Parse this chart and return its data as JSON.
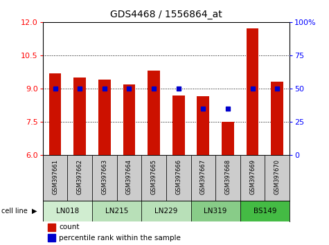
{
  "title": "GDS4468 / 1556864_at",
  "samples": [
    "GSM397661",
    "GSM397662",
    "GSM397663",
    "GSM397664",
    "GSM397665",
    "GSM397666",
    "GSM397667",
    "GSM397668",
    "GSM397669",
    "GSM397670"
  ],
  "count_values": [
    9.7,
    9.5,
    9.4,
    9.2,
    9.8,
    8.7,
    8.65,
    7.5,
    11.7,
    9.3
  ],
  "percentile_values": [
    50,
    50,
    50,
    50,
    50,
    50,
    35,
    35,
    50,
    50
  ],
  "cell_lines": [
    {
      "label": "LN018",
      "start": 0,
      "end": 1,
      "color": "#d8f0d8"
    },
    {
      "label": "LN215",
      "start": 2,
      "end": 3,
      "color": "#c0e8c0"
    },
    {
      "label": "LN229",
      "start": 4,
      "end": 5,
      "color": "#c0e8c0"
    },
    {
      "label": "LN319",
      "start": 6,
      "end": 7,
      "color": "#90d890"
    },
    {
      "label": "BS149",
      "start": 8,
      "end": 9,
      "color": "#44cc44"
    }
  ],
  "ylim_left": [
    6,
    12
  ],
  "ylim_right": [
    0,
    100
  ],
  "bar_color": "#cc1100",
  "dot_color": "#0000cc",
  "bar_width": 0.5,
  "yticks_left": [
    6,
    7.5,
    9,
    10.5,
    12
  ],
  "yticks_right": [
    0,
    25,
    50,
    75,
    100
  ],
  "ytick_labels_right": [
    "0",
    "25",
    "50",
    "75",
    "100%"
  ]
}
